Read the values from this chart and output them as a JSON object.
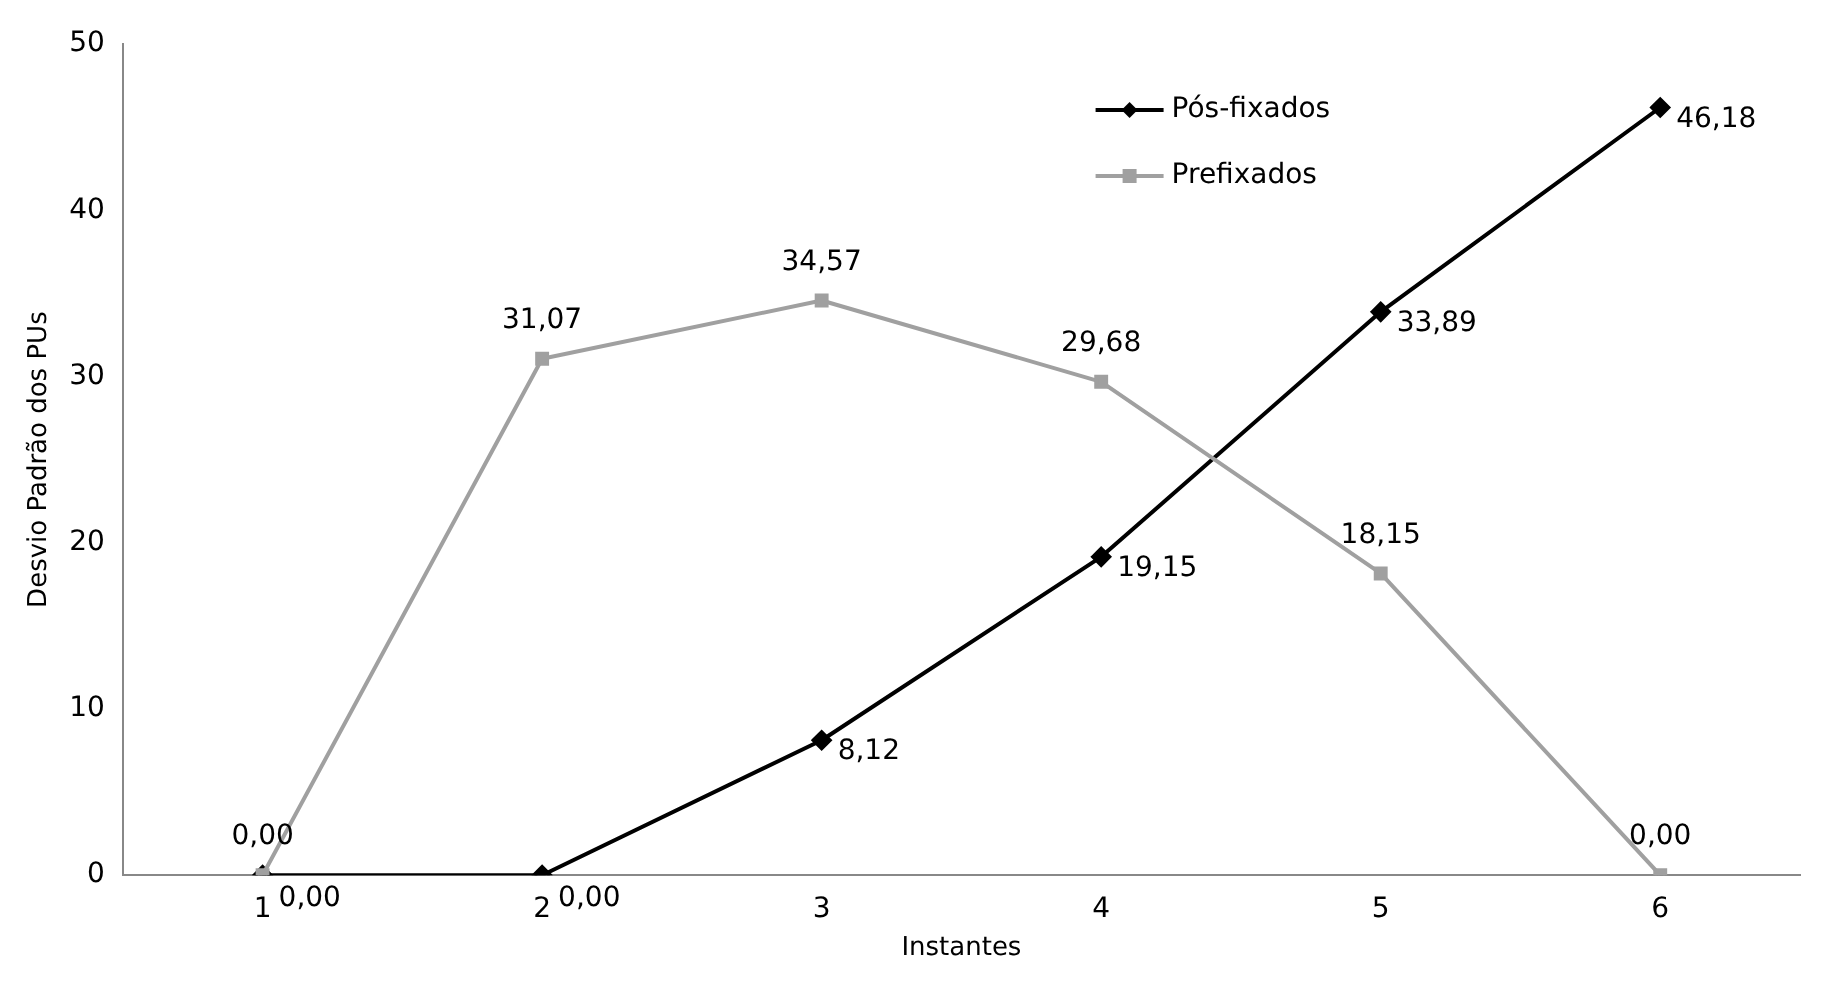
{
  "chart_data": {
    "type": "line",
    "xlabel": "Instantes",
    "ylabel": "Desvio Padrão dos PUs",
    "categories": [
      "1",
      "2",
      "3",
      "4",
      "5",
      "6"
    ],
    "ylim": [
      0,
      50
    ],
    "yticks": [
      0,
      10,
      20,
      30,
      40,
      50
    ],
    "grid": false,
    "legend": "top right",
    "line_style": "solid",
    "series": [
      {
        "name": "Pós-fixados",
        "color": "#000000",
        "marker": "diamond",
        "values": [
          0,
          0,
          8.12,
          19.15,
          33.89,
          46.18
        ],
        "value_labels": [
          "0,00",
          "0,00",
          "8,12",
          "19,15",
          "33,89",
          "46,18"
        ]
      },
      {
        "name": "Prefixados",
        "color": "#a0a0a0",
        "marker": "square",
        "values": [
          0,
          31.07,
          34.57,
          29.68,
          18.15,
          0
        ],
        "value_labels": [
          "0,00",
          "31,07",
          "34,57",
          "29,68",
          "18,15",
          "0,00"
        ]
      }
    ]
  }
}
